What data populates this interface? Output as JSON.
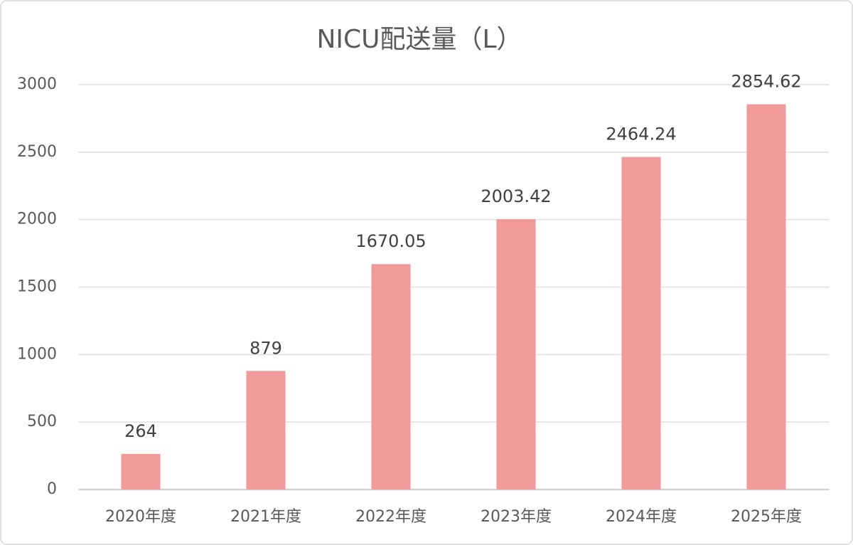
{
  "chart_data": {
    "type": "bar",
    "title": "NICU配送量（L）",
    "categories": [
      "2020年度",
      "2021年度",
      "2022年度",
      "2023年度",
      "2024年度",
      "2025年度"
    ],
    "values": [
      264,
      879,
      1670.05,
      2003.42,
      2464.24,
      2854.62
    ],
    "color": "#f09a9a",
    "ylim": [
      0,
      3000
    ],
    "yticks": [
      0,
      500,
      1000,
      1500,
      2000,
      2500,
      3000
    ],
    "grid": true
  }
}
